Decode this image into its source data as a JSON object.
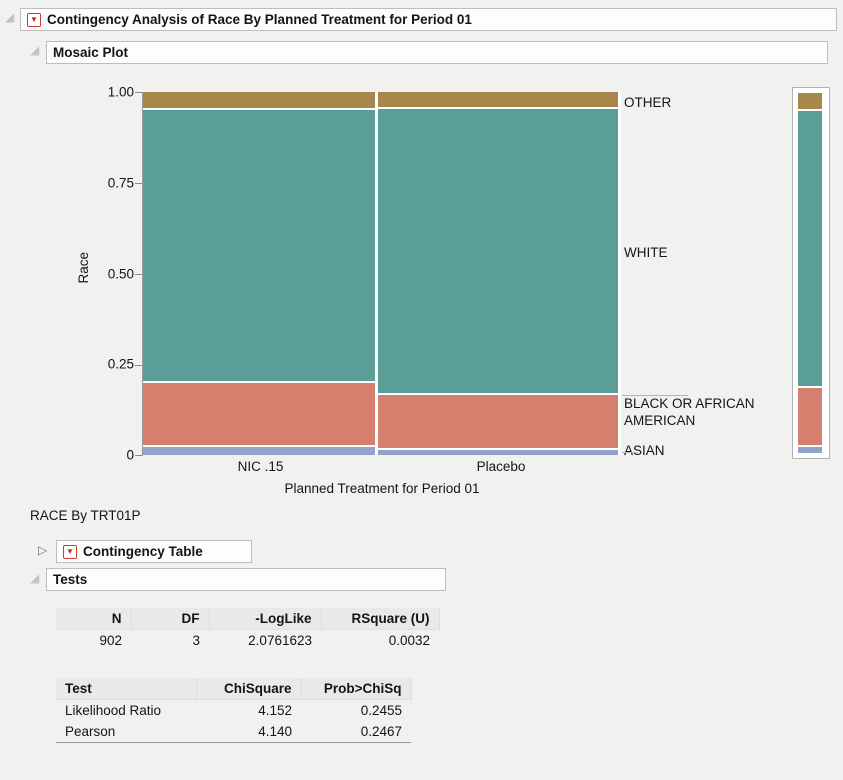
{
  "outlines": {
    "main_title": "Contingency Analysis of Race By Planned Treatment for Period 01",
    "mosaic_title": "Mosaic Plot",
    "race_by_label": "RACE By TRT01P",
    "contingency_title": "Contingency Table",
    "tests_title": "Tests"
  },
  "chart_data": {
    "type": "mosaic",
    "title": "Mosaic Plot",
    "xlabel": "Planned Treatment for Period 01",
    "ylabel": "Race",
    "ylim": [
      0,
      1
    ],
    "ytick_labels": [
      "1.00",
      "0.75",
      "0.50",
      "0.25",
      "0"
    ],
    "x_categories": [
      {
        "label": "NIC .15",
        "width": 0.492,
        "segments": [
          {
            "name": "ASIAN",
            "value": 0.022
          },
          {
            "name": "BLACK OR AFRICAN AMERICAN",
            "value": 0.176
          },
          {
            "name": "WHITE",
            "value": 0.752
          },
          {
            "name": "OTHER",
            "value": 0.05
          }
        ]
      },
      {
        "label": "Placebo",
        "width": 0.508,
        "segments": [
          {
            "name": "ASIAN",
            "value": 0.013
          },
          {
            "name": "BLACK OR AFRICAN AMERICAN",
            "value": 0.152
          },
          {
            "name": "WHITE",
            "value": 0.788
          },
          {
            "name": "OTHER",
            "value": 0.047
          }
        ]
      }
    ],
    "totals": [
      {
        "name": "ASIAN",
        "value": 0.017
      },
      {
        "name": "BLACK OR AFRICAN AMERICAN",
        "value": 0.163
      },
      {
        "name": "WHITE",
        "value": 0.77
      },
      {
        "name": "OTHER",
        "value": 0.05
      }
    ],
    "colors": {
      "ASIAN": "#93a2cc",
      "BLACK OR AFRICAN AMERICAN": "#d57f6f",
      "WHITE": "#5b9d97",
      "OTHER": "#a8874d"
    },
    "right_labels": [
      "OTHER",
      "WHITE",
      "BLACK OR AFRICAN AMERICAN",
      "ASIAN"
    ]
  },
  "tests": {
    "summary": {
      "headers": [
        "N",
        "DF",
        "-LogLike",
        "RSquare (U)"
      ],
      "rows": [
        [
          "902",
          "3",
          "2.0761623",
          "0.0032"
        ]
      ]
    },
    "chi": {
      "headers": [
        "Test",
        "ChiSquare",
        "Prob>ChiSq"
      ],
      "rows": [
        [
          "Likelihood Ratio",
          "4.152",
          "0.2455"
        ],
        [
          "Pearson",
          "4.140",
          "0.2467"
        ]
      ]
    }
  }
}
